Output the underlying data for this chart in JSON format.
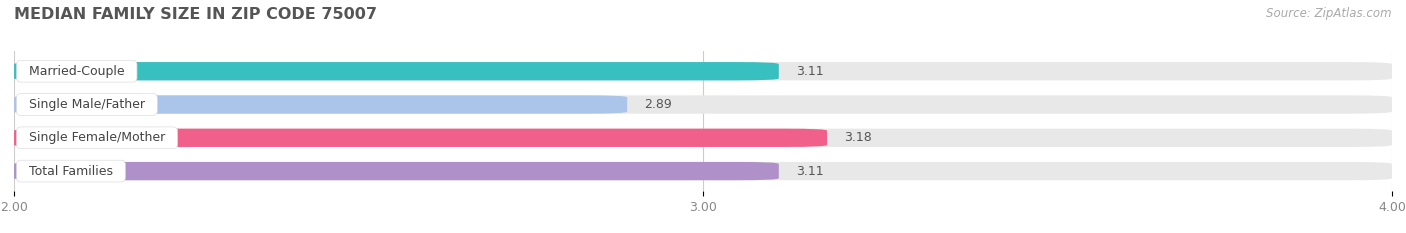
{
  "title": "MEDIAN FAMILY SIZE IN ZIP CODE 75007",
  "source": "Source: ZipAtlas.com",
  "categories": [
    "Married-Couple",
    "Single Male/Father",
    "Single Female/Mother",
    "Total Families"
  ],
  "values": [
    3.11,
    2.89,
    3.18,
    3.11
  ],
  "bar_colors": [
    "#38bfbf",
    "#aac4ea",
    "#f0608a",
    "#b090c8"
  ],
  "bar_bg_color": "#e8e8e8",
  "xlim": [
    2.0,
    4.0
  ],
  "xticks": [
    2.0,
    3.0,
    4.0
  ],
  "xtick_labels": [
    "2.00",
    "3.00",
    "4.00"
  ],
  "background_color": "#ffffff",
  "title_fontsize": 11.5,
  "label_fontsize": 9,
  "value_fontsize": 9,
  "source_fontsize": 8.5,
  "bar_height": 0.55,
  "label_bg_color": "#ffffff"
}
